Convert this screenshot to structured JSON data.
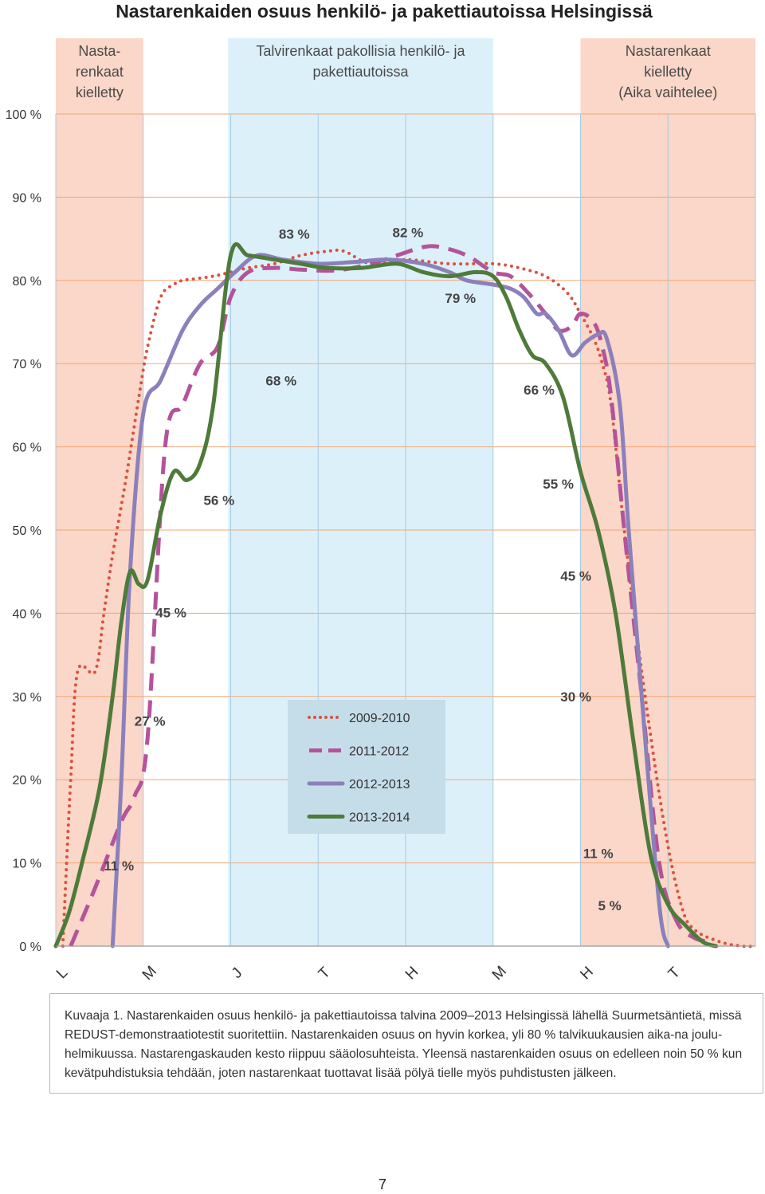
{
  "chart_data": {
    "type": "line",
    "title": "Nastarenkaiden osuus henkilö- ja pakettiautoissa Helsingissä",
    "xlabel": "",
    "ylabel": "",
    "ylim": [
      0,
      100
    ],
    "y_ticks": [
      "0 %",
      "10 %",
      "20 %",
      "30 %",
      "40 %",
      "50 %",
      "60 %",
      "70 %",
      "80 %",
      "90 %",
      "100 %"
    ],
    "xlim": [
      0,
      8
    ],
    "categories": [
      "L",
      "M",
      "J",
      "T",
      "H",
      "M",
      "H",
      "T"
    ],
    "bands": [
      {
        "label": "Nasta-\nrenkaat\nkielletty",
        "x0": 0,
        "x1": 1.0,
        "color": "#fad7c8"
      },
      {
        "label": "Talvirenkaat pakollisia henkilö- ja\npakettiautoissa",
        "x0": 1.97,
        "x1": 5.0,
        "color": "#dcf0fa"
      },
      {
        "label": "Nastarenkaat\nkielletty\n(Aika vaihtelee)",
        "x0": 6.0,
        "x1": 8.0,
        "color": "#fad7c8"
      }
    ],
    "legend_position": "center-bottom",
    "series": [
      {
        "name": "2009-2010",
        "style": "dotted",
        "color": "#d9513f",
        "x": [
          0.08,
          0.17,
          0.25,
          0.45,
          0.55,
          0.65,
          0.8,
          0.95,
          1.05,
          1.2,
          1.35,
          1.45,
          1.6,
          1.8,
          2.0,
          2.2,
          2.5,
          2.8,
          3.1,
          3.3,
          3.6,
          4.0,
          4.5,
          5.0,
          5.3,
          5.6,
          5.85,
          6.0,
          6.15,
          6.25,
          6.35,
          6.5,
          6.7,
          6.95,
          7.15,
          7.3,
          7.6,
          7.85,
          8.0
        ],
        "y": [
          0,
          20,
          33,
          33,
          40,
          47,
          56,
          66,
          72,
          78,
          79.5,
          80,
          80.2,
          80.5,
          81,
          81.5,
          82,
          83,
          83.5,
          83.5,
          82,
          82.5,
          82,
          82,
          81.5,
          80.5,
          78.5,
          76,
          73,
          70,
          65,
          50,
          33,
          15,
          5,
          2,
          0.5,
          0,
          0
        ]
      },
      {
        "name": "2011-2012",
        "style": "dashed",
        "color": "#b4539a",
        "x": [
          0.17,
          0.45,
          0.75,
          0.9,
          1.05,
          1.25,
          1.45,
          1.65,
          1.85,
          2.0,
          2.2,
          2.5,
          2.8,
          3.2,
          3.6,
          3.9,
          4.2,
          4.4,
          4.7,
          5.0,
          5.2,
          5.4,
          5.6,
          5.75,
          5.9,
          6.0,
          6.15,
          6.25,
          6.35,
          6.5,
          6.7,
          6.9,
          7.1,
          7.3,
          7.5
        ],
        "y": [
          0,
          7,
          15,
          18,
          25,
          60,
          65,
          70,
          72,
          78,
          81,
          81.5,
          81.3,
          81.2,
          82,
          83,
          84,
          84,
          83,
          81,
          80.5,
          78.5,
          76,
          74,
          74.5,
          76,
          75,
          72,
          66,
          50,
          30,
          10,
          3,
          1,
          0.5
        ]
      },
      {
        "name": "2012-2013",
        "style": "solid",
        "color": "#8c80bb",
        "x": [
          0.65,
          0.75,
          0.85,
          1.0,
          1.2,
          1.45,
          1.65,
          1.85,
          2.05,
          2.3,
          2.6,
          3.0,
          3.4,
          3.8,
          4.2,
          4.5,
          4.7,
          5.0,
          5.2,
          5.35,
          5.5,
          5.6,
          5.75,
          5.9,
          6.05,
          6.2,
          6.3,
          6.45,
          6.55,
          6.7,
          6.9,
          7.0
        ],
        "y": [
          0,
          20,
          45,
          64,
          68,
          74,
          77,
          79,
          81,
          83,
          82.5,
          82,
          82.2,
          82.5,
          82,
          81,
          80,
          79.5,
          79,
          78,
          76,
          76,
          74,
          71,
          72.5,
          73.5,
          73,
          65,
          50,
          30,
          5,
          0
        ]
      },
      {
        "name": "2013-2014",
        "style": "solid",
        "color": "#4e7a3a",
        "x": [
          0.0,
          0.15,
          0.3,
          0.5,
          0.65,
          0.75,
          0.85,
          0.95,
          1.05,
          1.2,
          1.35,
          1.5,
          1.65,
          1.8,
          2.0,
          2.2,
          2.5,
          2.8,
          3.1,
          3.5,
          3.9,
          4.2,
          4.5,
          4.8,
          5.0,
          5.15,
          5.3,
          5.45,
          5.6,
          5.8,
          6.0,
          6.2,
          6.4,
          6.6,
          6.8,
          7.0,
          7.2,
          7.4,
          7.55
        ],
        "y": [
          0,
          4,
          10,
          19,
          30,
          39,
          45,
          43.5,
          44,
          52,
          57,
          56,
          58,
          65,
          83,
          83,
          82.5,
          82,
          81.5,
          81.5,
          82,
          81,
          80.5,
          81,
          80.5,
          78,
          74,
          71,
          70,
          66,
          57,
          50,
          40,
          25,
          11,
          5,
          2.5,
          0.5,
          0
        ]
      }
    ],
    "annotations": [
      {
        "text": "11 %",
        "x": 0.55,
        "y": 9.1
      },
      {
        "text": "27 %",
        "x": 0.9,
        "y": 26.5
      },
      {
        "text": "45 %",
        "x": 1.14,
        "y": 39.5
      },
      {
        "text": "56 %",
        "x": 1.69,
        "y": 53
      },
      {
        "text": "68 %",
        "x": 2.4,
        "y": 67.4
      },
      {
        "text": "83 %",
        "x": 2.55,
        "y": 85
      },
      {
        "text": "82 %",
        "x": 3.85,
        "y": 85.2
      },
      {
        "text": "79 %",
        "x": 4.45,
        "y": 77.3
      },
      {
        "text": "66 %",
        "x": 5.35,
        "y": 66.3
      },
      {
        "text": "55 %",
        "x": 5.57,
        "y": 55
      },
      {
        "text": "45 %",
        "x": 5.77,
        "y": 43.9
      },
      {
        "text": "30 %",
        "x": 5.77,
        "y": 29.4
      },
      {
        "text": "11 %",
        "x": 6.03,
        "y": 10.6
      },
      {
        "text": "5 %",
        "x": 6.2,
        "y": 4.3
      }
    ]
  },
  "caption": "Kuvaaja 1. Nastarenkaiden osuus henkilö- ja pakettiautoissa talvina 2009–2013 Helsingissä lähellä Suurmetsäntietä, missä REDUST-demonstraatiotestit suoritettiin. Nastarenkaiden osuus on hyvin korkea, yli 80 % talvikuukausien aika-na joulu-helmikuussa. Nastarengaskauden kesto riippuu sääolosuhteista. Yleensä nastarenkaiden osuus on edelleen noin 50 % kun kevätpuhdistuksia tehdään, joten nastarenkaat tuottavat lisää pölyä tielle myös puhdistusten jälkeen.",
  "page_number": "7"
}
